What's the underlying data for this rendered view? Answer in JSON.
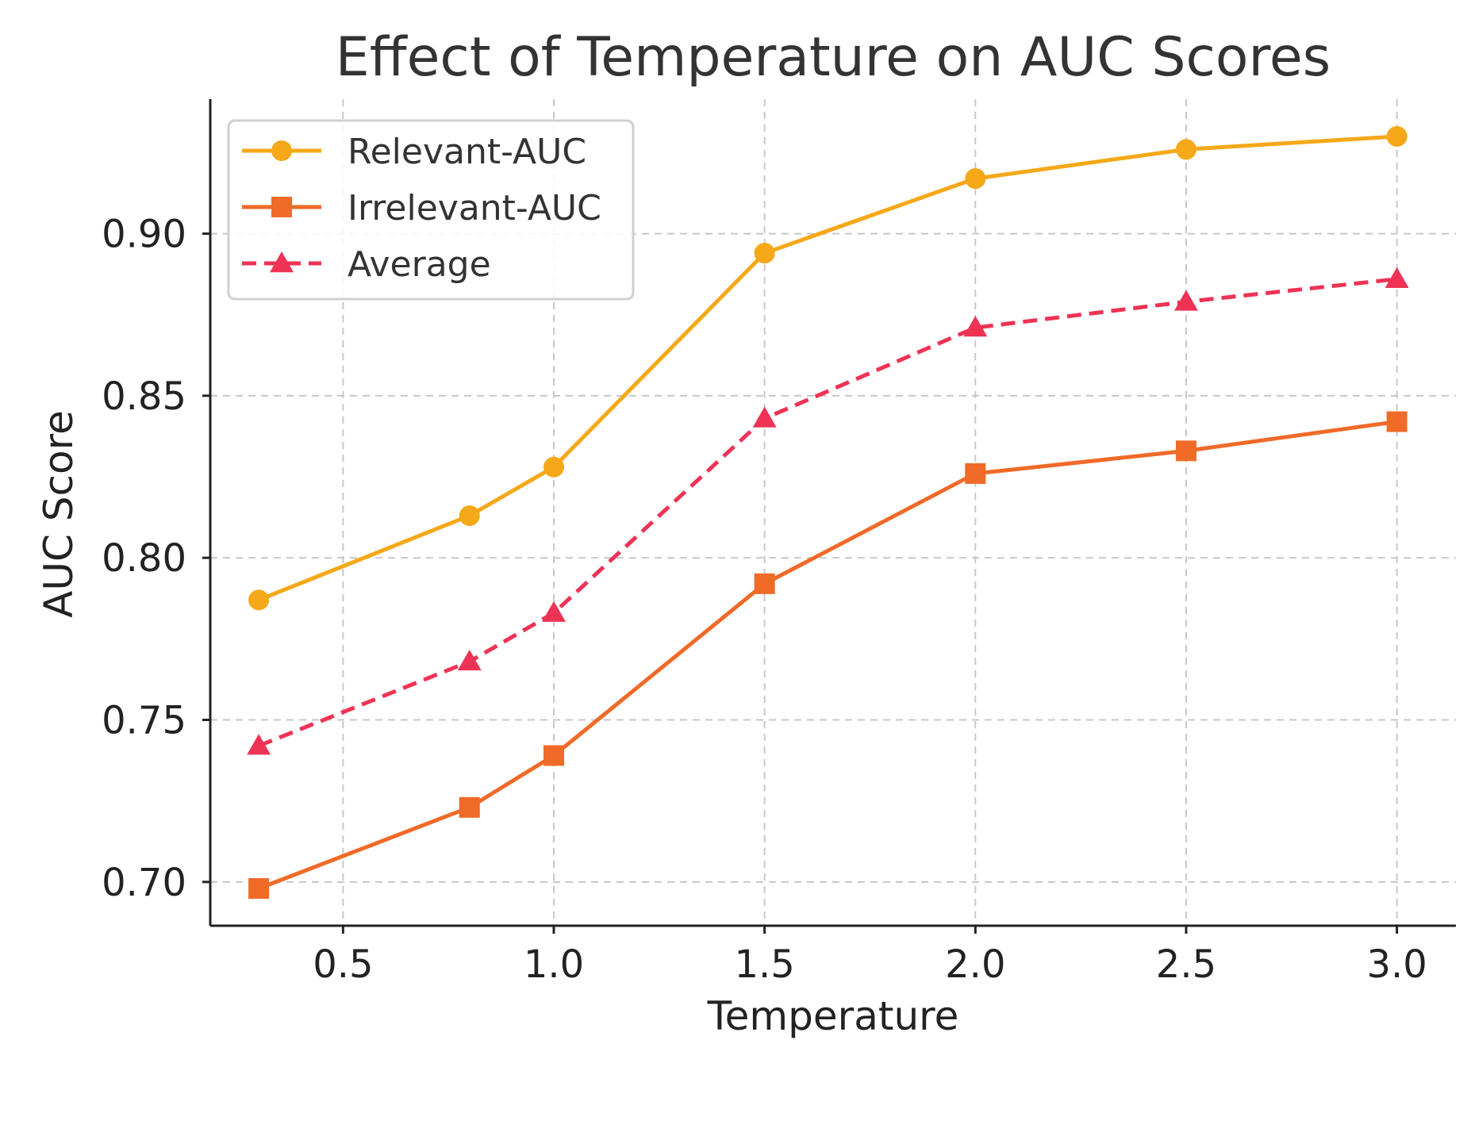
{
  "chart_data": {
    "type": "line",
    "title": "Effect of Temperature on AUC Scores",
    "xlabel": "Temperature",
    "ylabel": "AUC Score",
    "x": [
      0.3,
      0.8,
      1.0,
      1.5,
      2.0,
      2.5,
      3.0
    ],
    "xlim": [
      0.185,
      3.14
    ],
    "ylim": [
      0.6865,
      0.9415
    ],
    "xticks": [
      0.5,
      1.0,
      1.5,
      2.0,
      2.5,
      3.0
    ],
    "xtick_labels": [
      "0.5",
      "1.0",
      "1.5",
      "2.0",
      "2.5",
      "3.0"
    ],
    "yticks": [
      0.7,
      0.75,
      0.8,
      0.85,
      0.9
    ],
    "ytick_labels": [
      "0.70",
      "0.75",
      "0.80",
      "0.85",
      "0.90"
    ],
    "grid": true,
    "legend_position": "top-left",
    "series": [
      {
        "name": "Relevant-AUC",
        "values": [
          0.787,
          0.813,
          0.828,
          0.894,
          0.917,
          0.926,
          0.93
        ],
        "color": "#F5A818",
        "marker": "circle",
        "linestyle": "solid"
      },
      {
        "name": "Irrelevant-AUC",
        "values": [
          0.698,
          0.723,
          0.739,
          0.792,
          0.826,
          0.833,
          0.842
        ],
        "color": "#F06A28",
        "marker": "square",
        "linestyle": "solid"
      },
      {
        "name": "Average",
        "values": [
          0.742,
          0.768,
          0.783,
          0.843,
          0.871,
          0.879,
          0.886
        ],
        "color": "#EE3355",
        "marker": "triangle",
        "linestyle": "dashed"
      }
    ]
  }
}
